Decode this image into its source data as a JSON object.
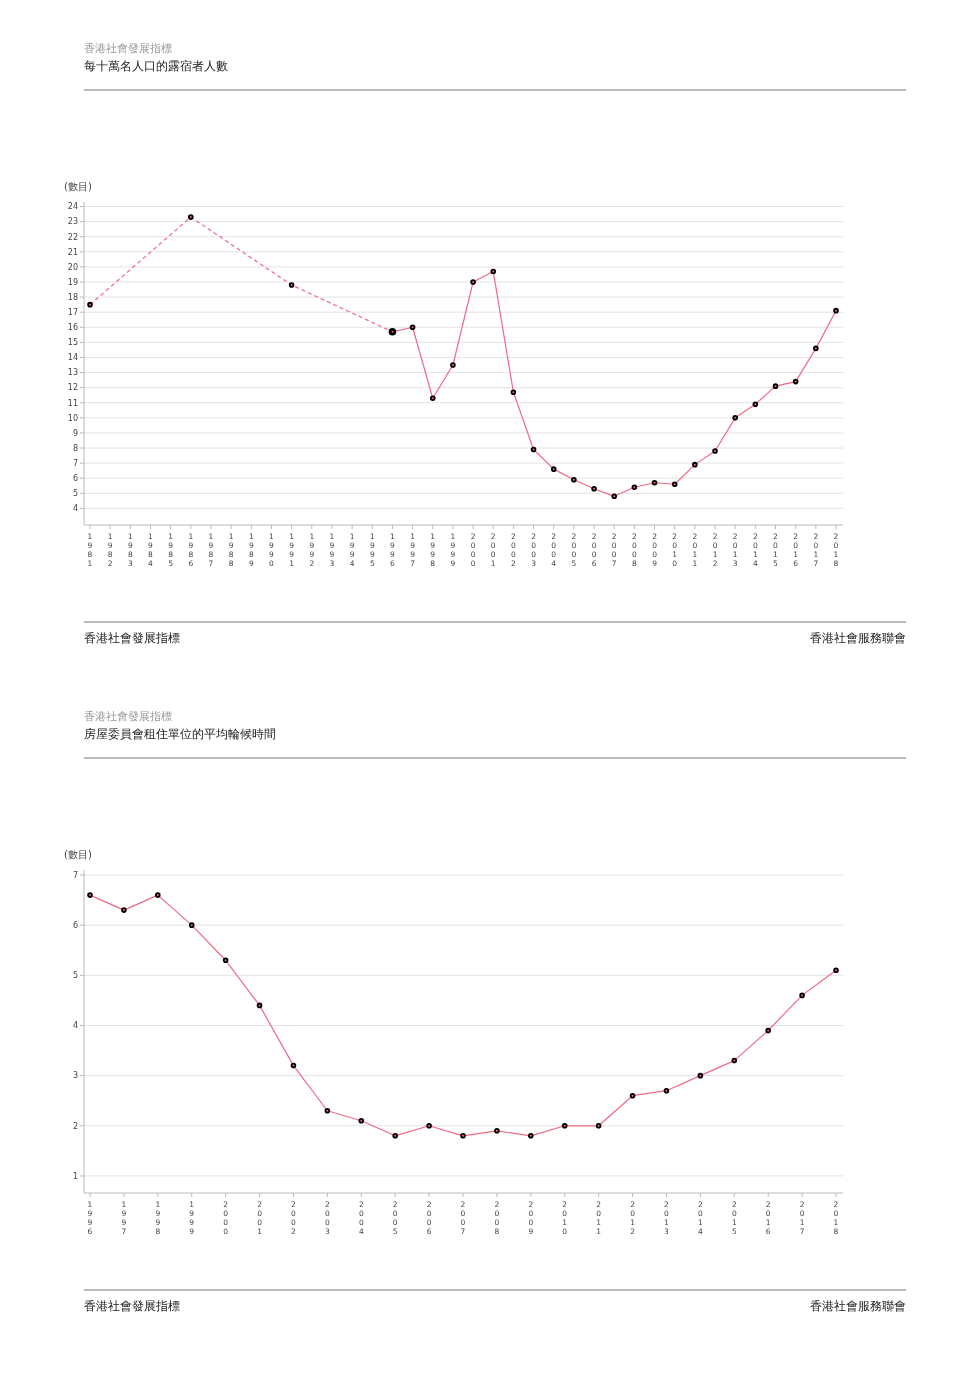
{
  "chart_data": [
    {
      "type": "line",
      "subtitle": "香港社會發展指標",
      "title": "每十萬名人口的露宿者人數",
      "ylabel": "(數目)",
      "categories": [
        "1981",
        "1982",
        "1983",
        "1984",
        "1985",
        "1986",
        "1987",
        "1988",
        "1989",
        "1990",
        "1991",
        "1992",
        "1993",
        "1994",
        "1995",
        "1996",
        "1997",
        "1998",
        "1999",
        "2000",
        "2001",
        "2002",
        "2003",
        "2004",
        "2005",
        "2006",
        "2007",
        "2008",
        "2009",
        "2010",
        "2011",
        "2012",
        "2013",
        "2014",
        "2015",
        "2016",
        "2017",
        "2018"
      ],
      "series": [
        {
          "color": "#f06a85",
          "line_style": "dashed",
          "values": [
            17.5,
            null,
            null,
            null,
            null,
            23.3,
            null,
            null,
            null,
            null,
            18.8,
            null,
            null,
            null,
            null,
            15.7,
            null,
            null,
            null,
            null,
            null,
            null,
            null,
            null,
            null,
            null,
            null,
            null,
            null,
            null,
            null,
            null,
            null,
            null,
            null,
            null,
            null,
            null
          ]
        },
        {
          "color": "#f06a85",
          "line_style": "solid",
          "values": [
            null,
            null,
            null,
            null,
            null,
            null,
            null,
            null,
            null,
            null,
            null,
            null,
            null,
            null,
            null,
            15.7,
            16.0,
            11.3,
            13.5,
            19.0,
            19.7,
            11.7,
            7.9,
            6.6,
            5.9,
            5.3,
            4.8,
            5.4,
            5.7,
            5.6,
            6.9,
            7.8,
            10.0,
            10.9,
            12.1,
            12.4,
            14.6,
            17.1
          ]
        }
      ],
      "ylim": [
        2.9,
        24.3
      ],
      "yticks": [
        4,
        5,
        6,
        7,
        8,
        9,
        10,
        11,
        12,
        13,
        14,
        15,
        16,
        17,
        18,
        19,
        20,
        21,
        22,
        23,
        24
      ],
      "grid": "y",
      "marker": "circle",
      "annotations": [
        "香港社會發展指標",
        "香港社會服務聯會"
      ]
    },
    {
      "type": "line",
      "subtitle": "香港社會發展指標",
      "title": "房屋委員會租住單位的平均輪候時間",
      "ylabel": "(數目)",
      "categories": [
        "1996",
        "1997",
        "1998",
        "1999",
        "2000",
        "2001",
        "2002",
        "2003",
        "2004",
        "2005",
        "2006",
        "2007",
        "2008",
        "2009",
        "2010",
        "2011",
        "2012",
        "2013",
        "2014",
        "2015",
        "2016",
        "2017",
        "2018"
      ],
      "series": [
        {
          "color": "#f06a85",
          "line_style": "solid",
          "values": [
            6.6,
            6.3,
            6.6,
            6.0,
            5.3,
            4.4,
            3.2,
            2.3,
            2.1,
            1.8,
            2.0,
            1.8,
            1.9,
            1.8,
            2.0,
            2.0,
            2.6,
            2.7,
            3.0,
            3.3,
            3.9,
            4.6,
            5.1
          ]
        }
      ],
      "ylim": [
        0.66,
        7.1
      ],
      "yticks": [
        1,
        2,
        3,
        4,
        5,
        6,
        7
      ],
      "grid": "y",
      "marker": "circle",
      "annotations": [
        "香港社會發展指標",
        "香港社會服務聯會"
      ]
    }
  ]
}
